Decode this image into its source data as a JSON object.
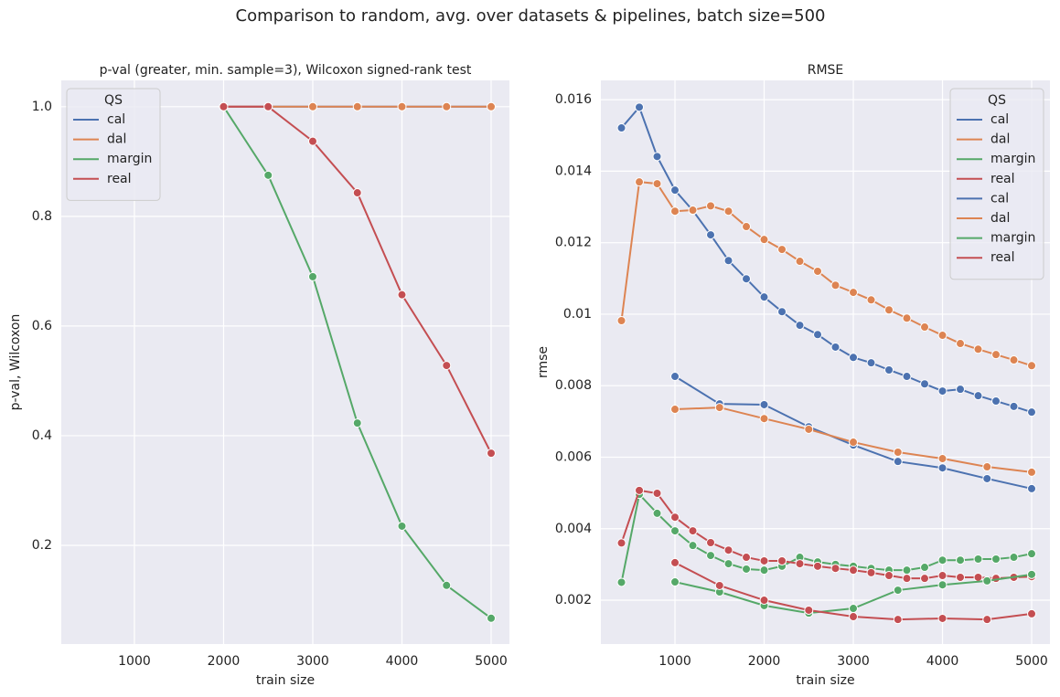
{
  "title": "Comparison to random, avg. over datasets & pipelines, batch size=500",
  "chart_data": [
    {
      "type": "line",
      "title": "p-val (greater, min. sample=3), Wilcoxon signed-rank test",
      "xlabel": "train size",
      "ylabel": "p-val, Wilcoxon",
      "xlim": [
        180,
        5205
      ],
      "ylim": [
        0.02,
        1.048
      ],
      "xticks": [
        1000,
        2000,
        3000,
        4000,
        5000
      ],
      "yticks": [
        0.2,
        0.4,
        0.6,
        0.8,
        {
          "value": 1,
          "label": "1.0"
        }
      ],
      "grid": true,
      "legend_title": "QS",
      "legend": "upper left",
      "series": [
        {
          "name": "cal",
          "color": "#4c72b0",
          "x": [
            2000,
            2500,
            3000,
            3500,
            4000,
            4500,
            5000
          ],
          "values": [
            1,
            1,
            1,
            1,
            1,
            1,
            1
          ]
        },
        {
          "name": "dal",
          "color": "#dd8452",
          "x": [
            2000,
            2500,
            3000,
            3500,
            4000,
            4500,
            5000
          ],
          "values": [
            1,
            1,
            1,
            1,
            1,
            1,
            1
          ]
        },
        {
          "name": "margin",
          "color": "#55a868",
          "x": [
            2000,
            2500,
            3000,
            3500,
            4000,
            4500,
            5000
          ],
          "values": [
            1,
            0.875,
            0.69,
            0.423,
            0.235,
            0.127,
            0.067
          ]
        },
        {
          "name": "real",
          "color": "#c44e52",
          "x": [
            2000,
            2500,
            3000,
            3500,
            4000,
            4500,
            5000
          ],
          "values": [
            1,
            1,
            0.937,
            0.843,
            0.657,
            0.528,
            0.368
          ]
        }
      ]
    },
    {
      "type": "line",
      "title": "RMSE",
      "xlabel": "train size",
      "ylabel": "rmse",
      "xlim": [
        169,
        5205
      ],
      "ylim": [
        0.000774,
        0.01654
      ],
      "xticks": [
        1000,
        2000,
        3000,
        4000,
        5000
      ],
      "yticks": [
        0.002,
        0.004,
        0.006,
        0.008,
        0.01,
        0.012,
        0.014,
        0.016
      ],
      "grid": true,
      "legend_title": "QS",
      "legend": "upper right",
      "series": [
        {
          "name": "cal",
          "color": "#4c72b0",
          "x": [
            400,
            600,
            800,
            1000,
            1200,
            1400,
            1600,
            1800,
            2000,
            2200,
            2400,
            2600,
            2800,
            3000,
            3200,
            3400,
            3600,
            3800,
            4000,
            4200,
            4400,
            4600,
            4800,
            5000
          ],
          "values": [
            0.01521,
            0.01579,
            0.01441,
            0.01347,
            0.0129,
            0.01222,
            0.0115,
            0.01099,
            0.01048,
            0.01007,
            0.00969,
            0.00943,
            0.00908,
            0.00879,
            0.00864,
            0.00844,
            0.00826,
            0.00805,
            0.00785,
            0.0079,
            0.00772,
            0.00757,
            0.00742,
            0.00726
          ]
        },
        {
          "name": "dal",
          "color": "#dd8452",
          "x": [
            400,
            600,
            800,
            1000,
            1200,
            1400,
            1600,
            1800,
            2000,
            2200,
            2400,
            2600,
            2800,
            3000,
            3200,
            3400,
            3600,
            3800,
            4000,
            4200,
            4400,
            4600,
            4800,
            5000
          ],
          "values": [
            0.00982,
            0.0137,
            0.01365,
            0.01288,
            0.01291,
            0.01303,
            0.01288,
            0.01245,
            0.01209,
            0.01181,
            0.01148,
            0.0112,
            0.01081,
            0.01061,
            0.0104,
            0.01012,
            0.00989,
            0.00964,
            0.00941,
            0.00918,
            0.00902,
            0.00887,
            0.00872,
            0.00856
          ]
        },
        {
          "name": "margin",
          "color": "#55a868",
          "x": [
            400,
            600,
            800,
            1000,
            1200,
            1400,
            1600,
            1800,
            2000,
            2200,
            2400,
            2600,
            2800,
            3000,
            3200,
            3400,
            3600,
            3800,
            4000,
            4200,
            4400,
            4600,
            4800,
            5000
          ],
          "values": [
            0.0025,
            0.00496,
            0.00443,
            0.00394,
            0.00353,
            0.00325,
            0.00302,
            0.00287,
            0.00284,
            0.00295,
            0.0032,
            0.00307,
            0.003,
            0.00295,
            0.00289,
            0.00284,
            0.00284,
            0.00292,
            0.00312,
            0.00312,
            0.00315,
            0.00315,
            0.0032,
            0.0033
          ]
        },
        {
          "name": "real",
          "color": "#c44e52",
          "x": [
            400,
            600,
            800,
            1000,
            1200,
            1400,
            1600,
            1800,
            2000,
            2200,
            2400,
            2600,
            2800,
            3000,
            3200,
            3400,
            3600,
            3800,
            4000,
            4200,
            4400,
            4600,
            4800,
            5000
          ],
          "values": [
            0.0036,
            0.00507,
            0.00499,
            0.00432,
            0.00394,
            0.00361,
            0.0034,
            0.0032,
            0.0031,
            0.0031,
            0.00302,
            0.00295,
            0.00289,
            0.00284,
            0.00277,
            0.00269,
            0.00261,
            0.00261,
            0.00269,
            0.00264,
            0.00264,
            0.00261,
            0.00264,
            0.00266
          ]
        },
        {
          "name": "cal",
          "color": "#4c72b0",
          "x": [
            1000,
            1500,
            2000,
            2500,
            3000,
            3500,
            4000,
            4500,
            5000
          ],
          "values": [
            0.00826,
            0.00749,
            0.00747,
            0.00685,
            0.00634,
            0.00588,
            0.0057,
            0.0054,
            0.00512
          ]
        },
        {
          "name": "dal",
          "color": "#dd8452",
          "x": [
            1000,
            1500,
            2000,
            2500,
            3000,
            3500,
            4000,
            4500,
            5000
          ],
          "values": [
            0.00734,
            0.00739,
            0.00708,
            0.00678,
            0.00642,
            0.00614,
            0.00596,
            0.00573,
            0.00558
          ]
        },
        {
          "name": "margin",
          "color": "#55a868",
          "x": [
            1000,
            1500,
            2000,
            2500,
            3000,
            3500,
            4000,
            4500,
            5000
          ],
          "values": [
            0.00251,
            0.00223,
            0.00185,
            0.00164,
            0.00177,
            0.00228,
            0.00243,
            0.00254,
            0.00272
          ]
        },
        {
          "name": "real",
          "color": "#c44e52",
          "x": [
            1000,
            1500,
            2000,
            2500,
            3000,
            3500,
            4000,
            4500,
            5000
          ],
          "values": [
            0.00305,
            0.00241,
            0.002,
            0.00172,
            0.00154,
            0.00146,
            0.00149,
            0.00146,
            0.00162
          ]
        }
      ]
    }
  ]
}
